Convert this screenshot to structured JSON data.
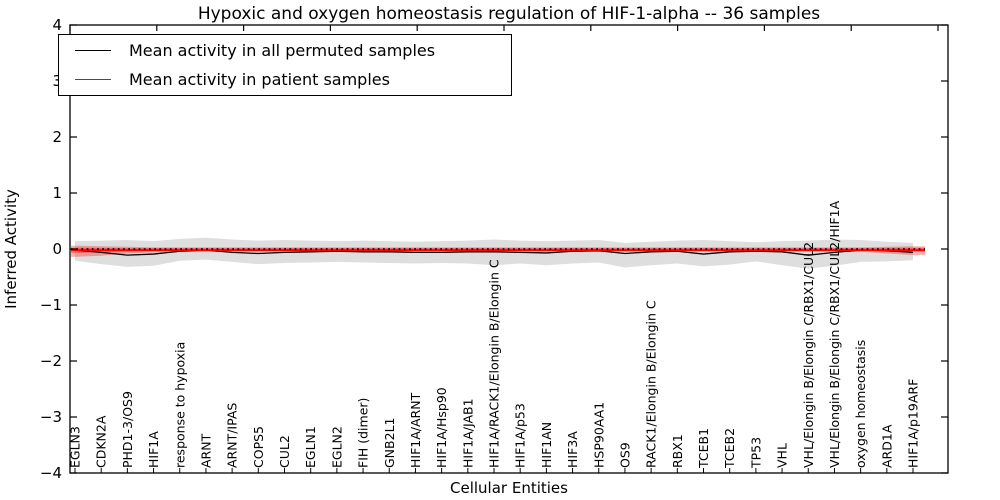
{
  "title": "Hypoxic and oxygen homeostasis regulation of HIF-1-alpha -- 36 samples",
  "legend": {
    "entries": [
      {
        "label": "Mean activity in all permuted samples",
        "color": "#000000"
      },
      {
        "label": "Mean activity in patient samples",
        "color": "#ff0000"
      }
    ]
  },
  "axes": {
    "xlabel": "Cellular Entities",
    "ylabel": "Inferred Activity",
    "yticks": [
      4,
      3,
      2,
      1,
      0,
      -1,
      -2,
      -3,
      -4
    ],
    "ytick_labels": [
      "4",
      "3",
      "2",
      "1",
      "0",
      "−1",
      "−2",
      "−3",
      "−4"
    ]
  },
  "chart_data": {
    "type": "line",
    "title": "Hypoxic and oxygen homeostasis regulation of HIF-1-alpha -- 36 samples",
    "xlabel": "Cellular Entities",
    "ylabel": "Inferred Activity",
    "ylim": [
      -4,
      4
    ],
    "grid": false,
    "legend_position": "upper left",
    "categories": [
      "EGLN3",
      "CDKN2A",
      "PHD1-3/OS9",
      "HIF1A",
      "response to hypoxia",
      "ARNT",
      "ARNT/IPAS",
      "COPS5",
      "CUL2",
      "EGLN1",
      "EGLN2",
      "FIH (dimer)",
      "GNB2L1",
      "HIF1A/ARNT",
      "HIF1A/Hsp90",
      "HIF1A/JAB1",
      "HIF1A/RACK1/Elongin B/Elongin C",
      "HIF1A/p53",
      "HIF1AN",
      "HIF3A",
      "HSP90AA1",
      "OS9",
      "RACK1/Elongin B/Elongin C",
      "RBX1",
      "TCEB1",
      "TCEB2",
      "TP53",
      "VHL",
      "VHL/Elongin B/Elongin C/RBX1/CUL2",
      "VHL/Elongin B/Elongin C/RBX1/CUL2/HIF1A",
      "oxygen homeostasis",
      "ARD1A",
      "HIF1A/p19ARF"
    ],
    "series": [
      {
        "name": "Mean activity in all permuted samples",
        "color": "#000000",
        "width": 1.3,
        "extend_to_axis": false,
        "values": [
          -0.02,
          -0.06,
          -0.11,
          -0.09,
          -0.04,
          -0.02,
          -0.06,
          -0.08,
          -0.06,
          -0.05,
          -0.04,
          -0.05,
          -0.05,
          -0.06,
          -0.06,
          -0.05,
          -0.05,
          -0.06,
          -0.07,
          -0.04,
          -0.03,
          -0.08,
          -0.05,
          -0.04,
          -0.09,
          -0.05,
          -0.04,
          -0.05,
          -0.11,
          -0.06,
          -0.02,
          -0.03,
          -0.06
        ]
      },
      {
        "name": "Mean activity in patient samples",
        "color": "#ff0000",
        "width": 1.7,
        "extend_to_axis": true,
        "values": [
          -0.02,
          -0.02,
          -0.02,
          -0.02,
          -0.02,
          -0.02,
          -0.02,
          -0.02,
          -0.02,
          -0.02,
          -0.02,
          -0.02,
          -0.02,
          -0.02,
          -0.02,
          -0.02,
          -0.02,
          -0.02,
          -0.02,
          -0.02,
          -0.02,
          -0.02,
          -0.02,
          -0.02,
          -0.02,
          -0.02,
          -0.02,
          -0.02,
          -0.02,
          -0.02,
          -0.02,
          -0.02,
          -0.02
        ]
      }
    ],
    "bands": [
      {
        "name": "permuted-sample-range",
        "color": "rgba(0,0,0,0.13)",
        "extend_to_axis": false,
        "upper": [
          0.14,
          0.15,
          0.16,
          0.14,
          0.18,
          0.2,
          0.17,
          0.15,
          0.16,
          0.15,
          0.14,
          0.15,
          0.14,
          0.13,
          0.14,
          0.15,
          0.17,
          0.15,
          0.14,
          0.15,
          0.16,
          0.11,
          0.13,
          0.15,
          0.16,
          0.14,
          0.12,
          0.14,
          0.15,
          0.17,
          0.16,
          0.13,
          0.11
        ],
        "lower": [
          -0.21,
          -0.27,
          -0.32,
          -0.3,
          -0.21,
          -0.19,
          -0.23,
          -0.27,
          -0.25,
          -0.24,
          -0.23,
          -0.24,
          -0.25,
          -0.26,
          -0.25,
          -0.26,
          -0.29,
          -0.26,
          -0.29,
          -0.26,
          -0.24,
          -0.33,
          -0.29,
          -0.26,
          -0.31,
          -0.28,
          -0.22,
          -0.29,
          -0.35,
          -0.3,
          -0.23,
          -0.22,
          -0.2
        ]
      },
      {
        "name": "patient-sample-range-outer",
        "color": "rgba(255,0,0,0.30)",
        "extend_to_axis": true,
        "upper": [
          0.06,
          0.05,
          0.04,
          0.03,
          0.03,
          0.03,
          0.03,
          0.03,
          0.03,
          0.03,
          0.03,
          0.03,
          0.03,
          0.03,
          0.03,
          0.03,
          0.03,
          0.03,
          0.03,
          0.03,
          0.03,
          0.03,
          0.03,
          0.03,
          0.03,
          0.03,
          0.03,
          0.03,
          0.03,
          0.03,
          0.03,
          0.04,
          0.05
        ],
        "lower": [
          -0.14,
          -0.12,
          -0.08,
          -0.06,
          -0.05,
          -0.05,
          -0.05,
          -0.05,
          -0.05,
          -0.05,
          -0.05,
          -0.05,
          -0.05,
          -0.05,
          -0.05,
          -0.05,
          -0.05,
          -0.05,
          -0.05,
          -0.05,
          -0.05,
          -0.05,
          -0.05,
          -0.05,
          -0.05,
          -0.05,
          -0.05,
          -0.05,
          -0.05,
          -0.05,
          -0.05,
          -0.08,
          -0.11
        ]
      },
      {
        "name": "patient-sample-range-inner",
        "color": "rgba(255,0,0,0.38)",
        "extend_to_axis": true,
        "upper": [
          0.025,
          0.02,
          0.015,
          0.015,
          0.015,
          0.015,
          0.015,
          0.015,
          0.015,
          0.015,
          0.015,
          0.015,
          0.015,
          0.015,
          0.015,
          0.015,
          0.015,
          0.015,
          0.015,
          0.015,
          0.015,
          0.015,
          0.015,
          0.015,
          0.015,
          0.015,
          0.015,
          0.015,
          0.015,
          0.015,
          0.015,
          0.02,
          0.025
        ],
        "lower": [
          -0.07,
          -0.06,
          -0.045,
          -0.035,
          -0.035,
          -0.035,
          -0.035,
          -0.035,
          -0.035,
          -0.035,
          -0.035,
          -0.035,
          -0.035,
          -0.035,
          -0.035,
          -0.035,
          -0.035,
          -0.035,
          -0.035,
          -0.035,
          -0.035,
          -0.035,
          -0.035,
          -0.035,
          -0.035,
          -0.035,
          -0.035,
          -0.035,
          -0.035,
          -0.035,
          -0.035,
          -0.04,
          -0.05
        ]
      }
    ],
    "zero_line": 0
  }
}
